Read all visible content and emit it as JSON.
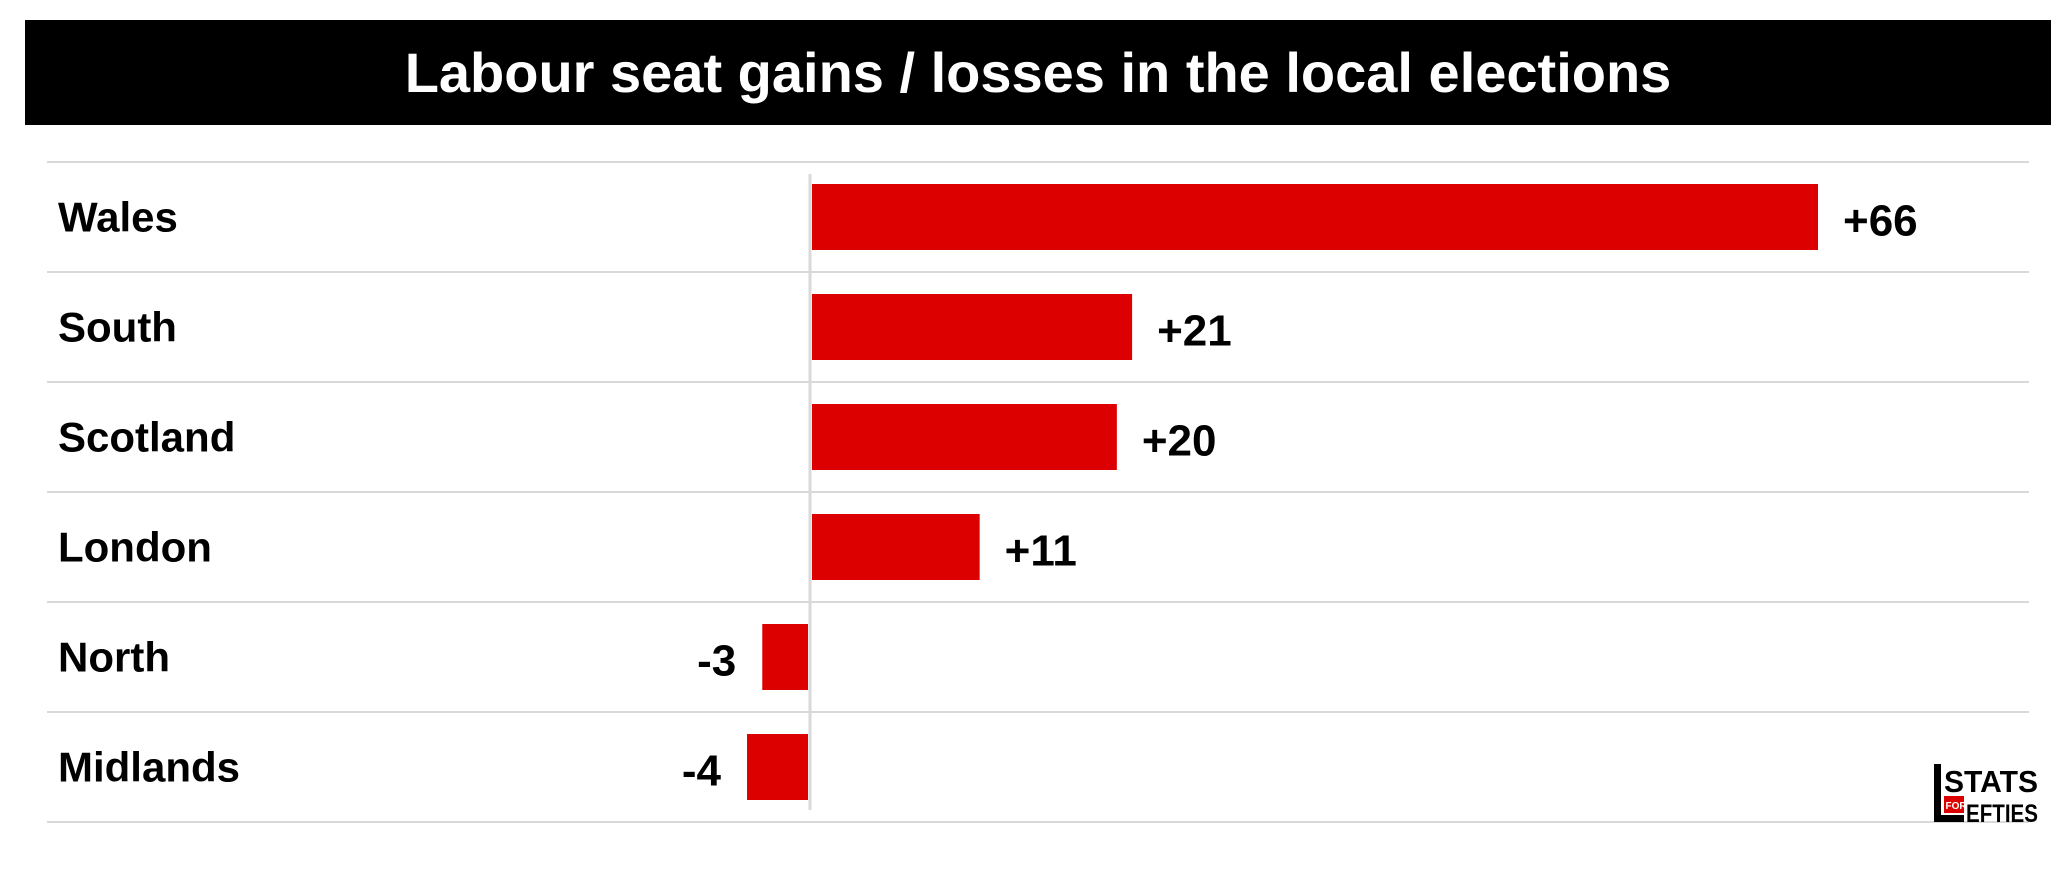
{
  "title": "Labour seat gains / losses in the local elections",
  "colors": {
    "bar": "#dd0000",
    "title_bg": "#000000",
    "title_text": "#ffffff",
    "grid": "#d9d9d9",
    "text": "#000000"
  },
  "logo": {
    "icon": "stats-for-lefties-logo",
    "top_text": "STATS",
    "small_text": "FOR",
    "bottom_text": "EFTIES"
  },
  "chart_data": {
    "type": "bar",
    "orientation": "horizontal",
    "categories": [
      "Wales",
      "South",
      "Scotland",
      "London",
      "North",
      "Midlands"
    ],
    "values": [
      66,
      21,
      20,
      11,
      -3,
      -4
    ],
    "data_labels": [
      "+66",
      "+21",
      "+20",
      "+11",
      "-3",
      "-4"
    ],
    "title": "Labour seat gains / losses in the local elections",
    "xlim": [
      -4,
      66
    ],
    "grid": "horizontal row separators",
    "legend": "none"
  }
}
